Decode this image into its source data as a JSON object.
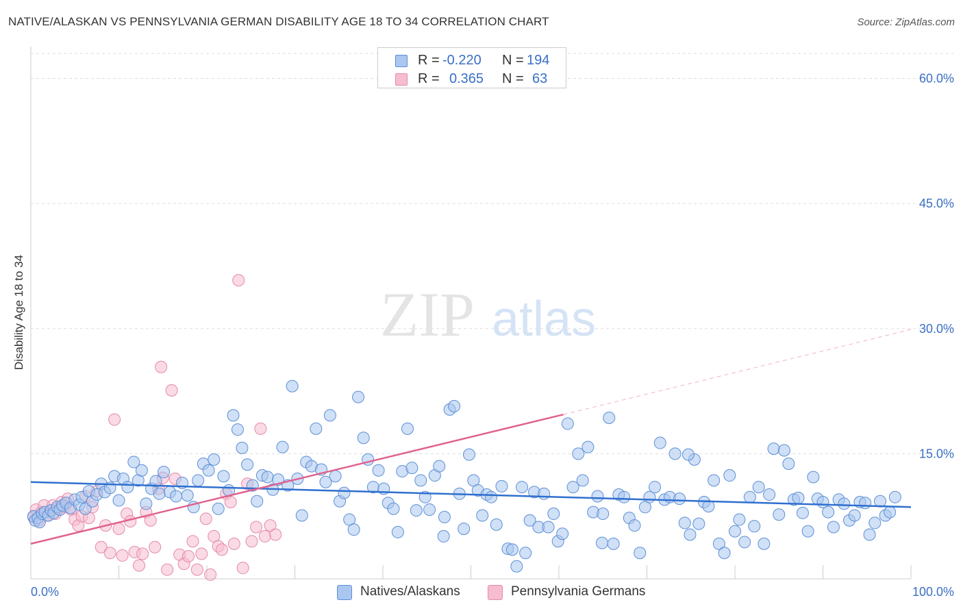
{
  "title": "NATIVE/ALASKAN VS PENNSYLVANIA GERMAN DISABILITY AGE 18 TO 34 CORRELATION CHART",
  "source": "Source: ZipAtlas.com",
  "watermark": {
    "zip": "ZIP",
    "atlas": "atlas"
  },
  "legend": {
    "r_label": "R =",
    "n_label": "N =",
    "series": [
      {
        "r": "-0.220",
        "n": "194"
      },
      {
        "r": "0.365",
        "n": "63"
      }
    ]
  },
  "bottom_legend": [
    "Natives/Alaskans",
    "Pennsylvania Germans"
  ],
  "colors": {
    "blue_fill": "#aac7ef",
    "blue_stroke": "#5b8fd6",
    "blue_line": "#2f6fcf",
    "pink_fill": "#f6bcd0",
    "pink_stroke": "#e48aa9",
    "pink_line": "#e0628f",
    "axis_text": "#3a6fc4",
    "grid": "#dddddd"
  },
  "chart_data": {
    "type": "scatter",
    "xlabel": "",
    "ylabel": "Disability Age 18 to 34",
    "xlim": [
      0,
      100
    ],
    "ylim": [
      0,
      63
    ],
    "x_tick_labels": [
      "0.0%",
      "100.0%"
    ],
    "y_ticks": [
      15,
      30,
      45,
      60
    ],
    "y_tick_labels": [
      "15.0%",
      "30.0%",
      "45.0%",
      "60.0%"
    ],
    "grid": true,
    "legend_position": "top-center",
    "series": [
      {
        "name": "Natives/Alaskans",
        "color": "#5b8fd6",
        "trend": {
          "x": [
            0,
            100
          ],
          "y": [
            11.6,
            8.6
          ]
        },
        "points": [
          [
            0.3,
            7.5
          ],
          [
            0.5,
            7.0
          ],
          [
            0.8,
            7.3
          ],
          [
            1.0,
            6.8
          ],
          [
            1.3,
            7.8
          ],
          [
            1.6,
            8.0
          ],
          [
            2.0,
            7.6
          ],
          [
            2.3,
            8.2
          ],
          [
            2.6,
            7.9
          ],
          [
            3.0,
            8.6
          ],
          [
            3.3,
            8.3
          ],
          [
            3.6,
            8.8
          ],
          [
            4.0,
            9.1
          ],
          [
            4.5,
            8.5
          ],
          [
            5.0,
            9.5
          ],
          [
            5.5,
            8.9
          ],
          [
            5.8,
            9.8
          ],
          [
            6.2,
            8.4
          ],
          [
            6.6,
            10.5
          ],
          [
            7.0,
            9.3
          ],
          [
            7.5,
            10.1
          ],
          [
            8.0,
            11.4
          ],
          [
            8.4,
            10.4
          ],
          [
            9.0,
            10.9
          ],
          [
            9.5,
            12.3
          ],
          [
            10.0,
            9.4
          ],
          [
            10.5,
            12.0
          ],
          [
            11.0,
            11.0
          ],
          [
            11.7,
            14.0
          ],
          [
            12.2,
            11.8
          ],
          [
            12.6,
            13.0
          ],
          [
            13.1,
            9.0
          ],
          [
            13.7,
            10.8
          ],
          [
            14.2,
            11.7
          ],
          [
            14.6,
            10.2
          ],
          [
            15.1,
            12.8
          ],
          [
            15.8,
            10.4
          ],
          [
            16.5,
            9.9
          ],
          [
            17.2,
            11.5
          ],
          [
            17.8,
            10.0
          ],
          [
            18.5,
            8.6
          ],
          [
            19.0,
            11.8
          ],
          [
            19.6,
            13.8
          ],
          [
            20.2,
            13.0
          ],
          [
            20.8,
            14.3
          ],
          [
            21.3,
            8.4
          ],
          [
            21.9,
            12.3
          ],
          [
            22.5,
            10.6
          ],
          [
            23.0,
            19.6
          ],
          [
            23.5,
            17.9
          ],
          [
            24.0,
            15.7
          ],
          [
            24.6,
            13.7
          ],
          [
            25.2,
            11.2
          ],
          [
            25.7,
            9.3
          ],
          [
            26.3,
            12.4
          ],
          [
            26.9,
            12.2
          ],
          [
            27.5,
            10.7
          ],
          [
            28.1,
            11.9
          ],
          [
            28.6,
            15.8
          ],
          [
            29.2,
            11.2
          ],
          [
            29.7,
            23.1
          ],
          [
            30.3,
            12.0
          ],
          [
            30.8,
            7.6
          ],
          [
            31.3,
            14.0
          ],
          [
            31.9,
            13.5
          ],
          [
            32.4,
            18.0
          ],
          [
            33.0,
            13.1
          ],
          [
            33.5,
            11.6
          ],
          [
            34.0,
            19.6
          ],
          [
            34.6,
            12.3
          ],
          [
            35.1,
            9.3
          ],
          [
            35.6,
            10.3
          ],
          [
            36.2,
            7.1
          ],
          [
            36.7,
            5.9
          ],
          [
            37.2,
            21.8
          ],
          [
            37.8,
            16.9
          ],
          [
            38.3,
            14.3
          ],
          [
            38.9,
            11.0
          ],
          [
            39.5,
            13.0
          ],
          [
            40.1,
            10.8
          ],
          [
            40.6,
            9.1
          ],
          [
            41.2,
            8.4
          ],
          [
            41.7,
            5.6
          ],
          [
            42.2,
            12.9
          ],
          [
            42.8,
            18.0
          ],
          [
            43.3,
            13.3
          ],
          [
            43.8,
            8.2
          ],
          [
            44.3,
            11.8
          ],
          [
            44.8,
            9.8
          ],
          [
            45.3,
            8.3
          ],
          [
            45.9,
            12.4
          ],
          [
            46.4,
            13.5
          ],
          [
            47.0,
            7.4
          ],
          [
            47.6,
            20.3
          ],
          [
            48.1,
            20.7
          ],
          [
            48.7,
            10.2
          ],
          [
            49.2,
            6.0
          ],
          [
            49.8,
            14.9
          ],
          [
            50.3,
            11.8
          ],
          [
            50.8,
            10.6
          ],
          [
            51.3,
            7.6
          ],
          [
            51.8,
            10.1
          ],
          [
            52.3,
            9.8
          ],
          [
            52.9,
            6.5
          ],
          [
            53.5,
            11.1
          ],
          [
            54.2,
            3.6
          ],
          [
            54.7,
            3.5
          ],
          [
            55.2,
            1.5
          ],
          [
            55.8,
            11.0
          ],
          [
            56.2,
            3.1
          ],
          [
            56.7,
            7.0
          ],
          [
            57.2,
            10.4
          ],
          [
            57.7,
            6.2
          ],
          [
            58.3,
            10.2
          ],
          [
            58.8,
            6.2
          ],
          [
            59.4,
            7.8
          ],
          [
            59.9,
            4.5
          ],
          [
            60.4,
            5.4
          ],
          [
            61.0,
            18.6
          ],
          [
            61.6,
            11.0
          ],
          [
            62.2,
            15.0
          ],
          [
            62.7,
            11.8
          ],
          [
            63.3,
            15.8
          ],
          [
            63.9,
            8.0
          ],
          [
            64.4,
            9.9
          ],
          [
            65.0,
            7.8
          ],
          [
            65.7,
            19.3
          ],
          [
            66.2,
            4.2
          ],
          [
            66.8,
            10.1
          ],
          [
            67.4,
            9.8
          ],
          [
            68.0,
            7.3
          ],
          [
            68.6,
            6.4
          ],
          [
            69.2,
            3.1
          ],
          [
            69.8,
            8.6
          ],
          [
            70.3,
            9.8
          ],
          [
            70.9,
            11.0
          ],
          [
            71.5,
            16.3
          ],
          [
            72.0,
            9.5
          ],
          [
            72.6,
            9.8
          ],
          [
            73.2,
            15.0
          ],
          [
            73.7,
            9.6
          ],
          [
            74.3,
            6.7
          ],
          [
            74.9,
            5.3
          ],
          [
            75.4,
            14.3
          ],
          [
            75.9,
            6.6
          ],
          [
            76.5,
            9.2
          ],
          [
            77.0,
            8.7
          ],
          [
            77.6,
            11.8
          ],
          [
            78.2,
            4.2
          ],
          [
            78.8,
            3.1
          ],
          [
            79.4,
            12.4
          ],
          [
            80.0,
            5.7
          ],
          [
            80.5,
            7.1
          ],
          [
            81.1,
            4.4
          ],
          [
            81.7,
            9.8
          ],
          [
            82.2,
            6.3
          ],
          [
            82.7,
            11.0
          ],
          [
            83.3,
            4.2
          ],
          [
            83.9,
            10.1
          ],
          [
            84.4,
            15.6
          ],
          [
            85.0,
            7.7
          ],
          [
            85.6,
            15.4
          ],
          [
            86.1,
            13.8
          ],
          [
            86.7,
            9.5
          ],
          [
            87.2,
            9.7
          ],
          [
            87.7,
            7.9
          ],
          [
            88.3,
            5.7
          ],
          [
            88.9,
            12.2
          ],
          [
            89.4,
            9.6
          ],
          [
            90.0,
            9.2
          ],
          [
            90.6,
            8.0
          ],
          [
            91.2,
            6.2
          ],
          [
            91.8,
            9.5
          ],
          [
            92.4,
            9.0
          ],
          [
            93.0,
            7.0
          ],
          [
            93.6,
            7.6
          ],
          [
            94.2,
            9.2
          ],
          [
            94.8,
            9.1
          ],
          [
            95.3,
            5.3
          ],
          [
            95.9,
            6.7
          ],
          [
            96.5,
            9.3
          ],
          [
            97.1,
            7.6
          ],
          [
            97.6,
            8.0
          ],
          [
            98.2,
            9.8
          ],
          [
            46.9,
            5.1
          ],
          [
            64.9,
            4.3
          ],
          [
            74.7,
            14.9
          ]
        ]
      },
      {
        "name": "Pennsylvania Germans",
        "color": "#e48aa9",
        "trend": {
          "x": [
            0,
            60.5
          ],
          "y": [
            4.2,
            19.7
          ]
        },
        "trend_dashed": {
          "x": [
            60.5,
            100
          ],
          "y": [
            19.7,
            29.9
          ]
        },
        "points": [
          [
            0.3,
            7.4
          ],
          [
            0.6,
            8.3
          ],
          [
            0.9,
            7.0
          ],
          [
            1.2,
            8.0
          ],
          [
            1.5,
            8.8
          ],
          [
            1.8,
            7.6
          ],
          [
            2.2,
            8.1
          ],
          [
            2.5,
            8.8
          ],
          [
            2.8,
            7.8
          ],
          [
            3.1,
            8.4
          ],
          [
            3.5,
            9.2
          ],
          [
            3.8,
            8.6
          ],
          [
            4.2,
            9.6
          ],
          [
            4.6,
            8.3
          ],
          [
            5.0,
            7.1
          ],
          [
            5.4,
            6.4
          ],
          [
            5.8,
            7.5
          ],
          [
            6.2,
            9.9
          ],
          [
            6.6,
            7.3
          ],
          [
            7.0,
            8.6
          ],
          [
            7.5,
            10.5
          ],
          [
            8.0,
            3.8
          ],
          [
            8.5,
            6.4
          ],
          [
            9.0,
            3.1
          ],
          [
            9.5,
            19.1
          ],
          [
            10.0,
            6.0
          ],
          [
            10.4,
            2.8
          ],
          [
            10.9,
            7.8
          ],
          [
            11.3,
            6.9
          ],
          [
            11.8,
            3.2
          ],
          [
            12.3,
            1.6
          ],
          [
            12.7,
            3.0
          ],
          [
            13.1,
            8.0
          ],
          [
            13.6,
            7.0
          ],
          [
            14.1,
            3.8
          ],
          [
            14.5,
            10.8
          ],
          [
            15.0,
            12.1
          ],
          [
            15.5,
            1.1
          ],
          [
            16.0,
            22.6
          ],
          [
            16.4,
            12.0
          ],
          [
            16.9,
            2.9
          ],
          [
            17.4,
            1.8
          ],
          [
            17.9,
            2.7
          ],
          [
            18.4,
            4.5
          ],
          [
            18.9,
            1.1
          ],
          [
            19.4,
            3.0
          ],
          [
            19.9,
            7.2
          ],
          [
            20.4,
            0.5
          ],
          [
            20.8,
            5.1
          ],
          [
            21.3,
            3.9
          ],
          [
            21.7,
            3.5
          ],
          [
            22.2,
            10.2
          ],
          [
            22.7,
            9.2
          ],
          [
            23.1,
            4.2
          ],
          [
            23.6,
            35.8
          ],
          [
            24.1,
            1.3
          ],
          [
            24.6,
            11.4
          ],
          [
            25.1,
            4.5
          ],
          [
            25.6,
            6.2
          ],
          [
            26.1,
            18.0
          ],
          [
            26.6,
            5.1
          ],
          [
            27.2,
            6.4
          ],
          [
            27.8,
            5.3
          ],
          [
            14.8,
            25.4
          ]
        ]
      }
    ]
  }
}
